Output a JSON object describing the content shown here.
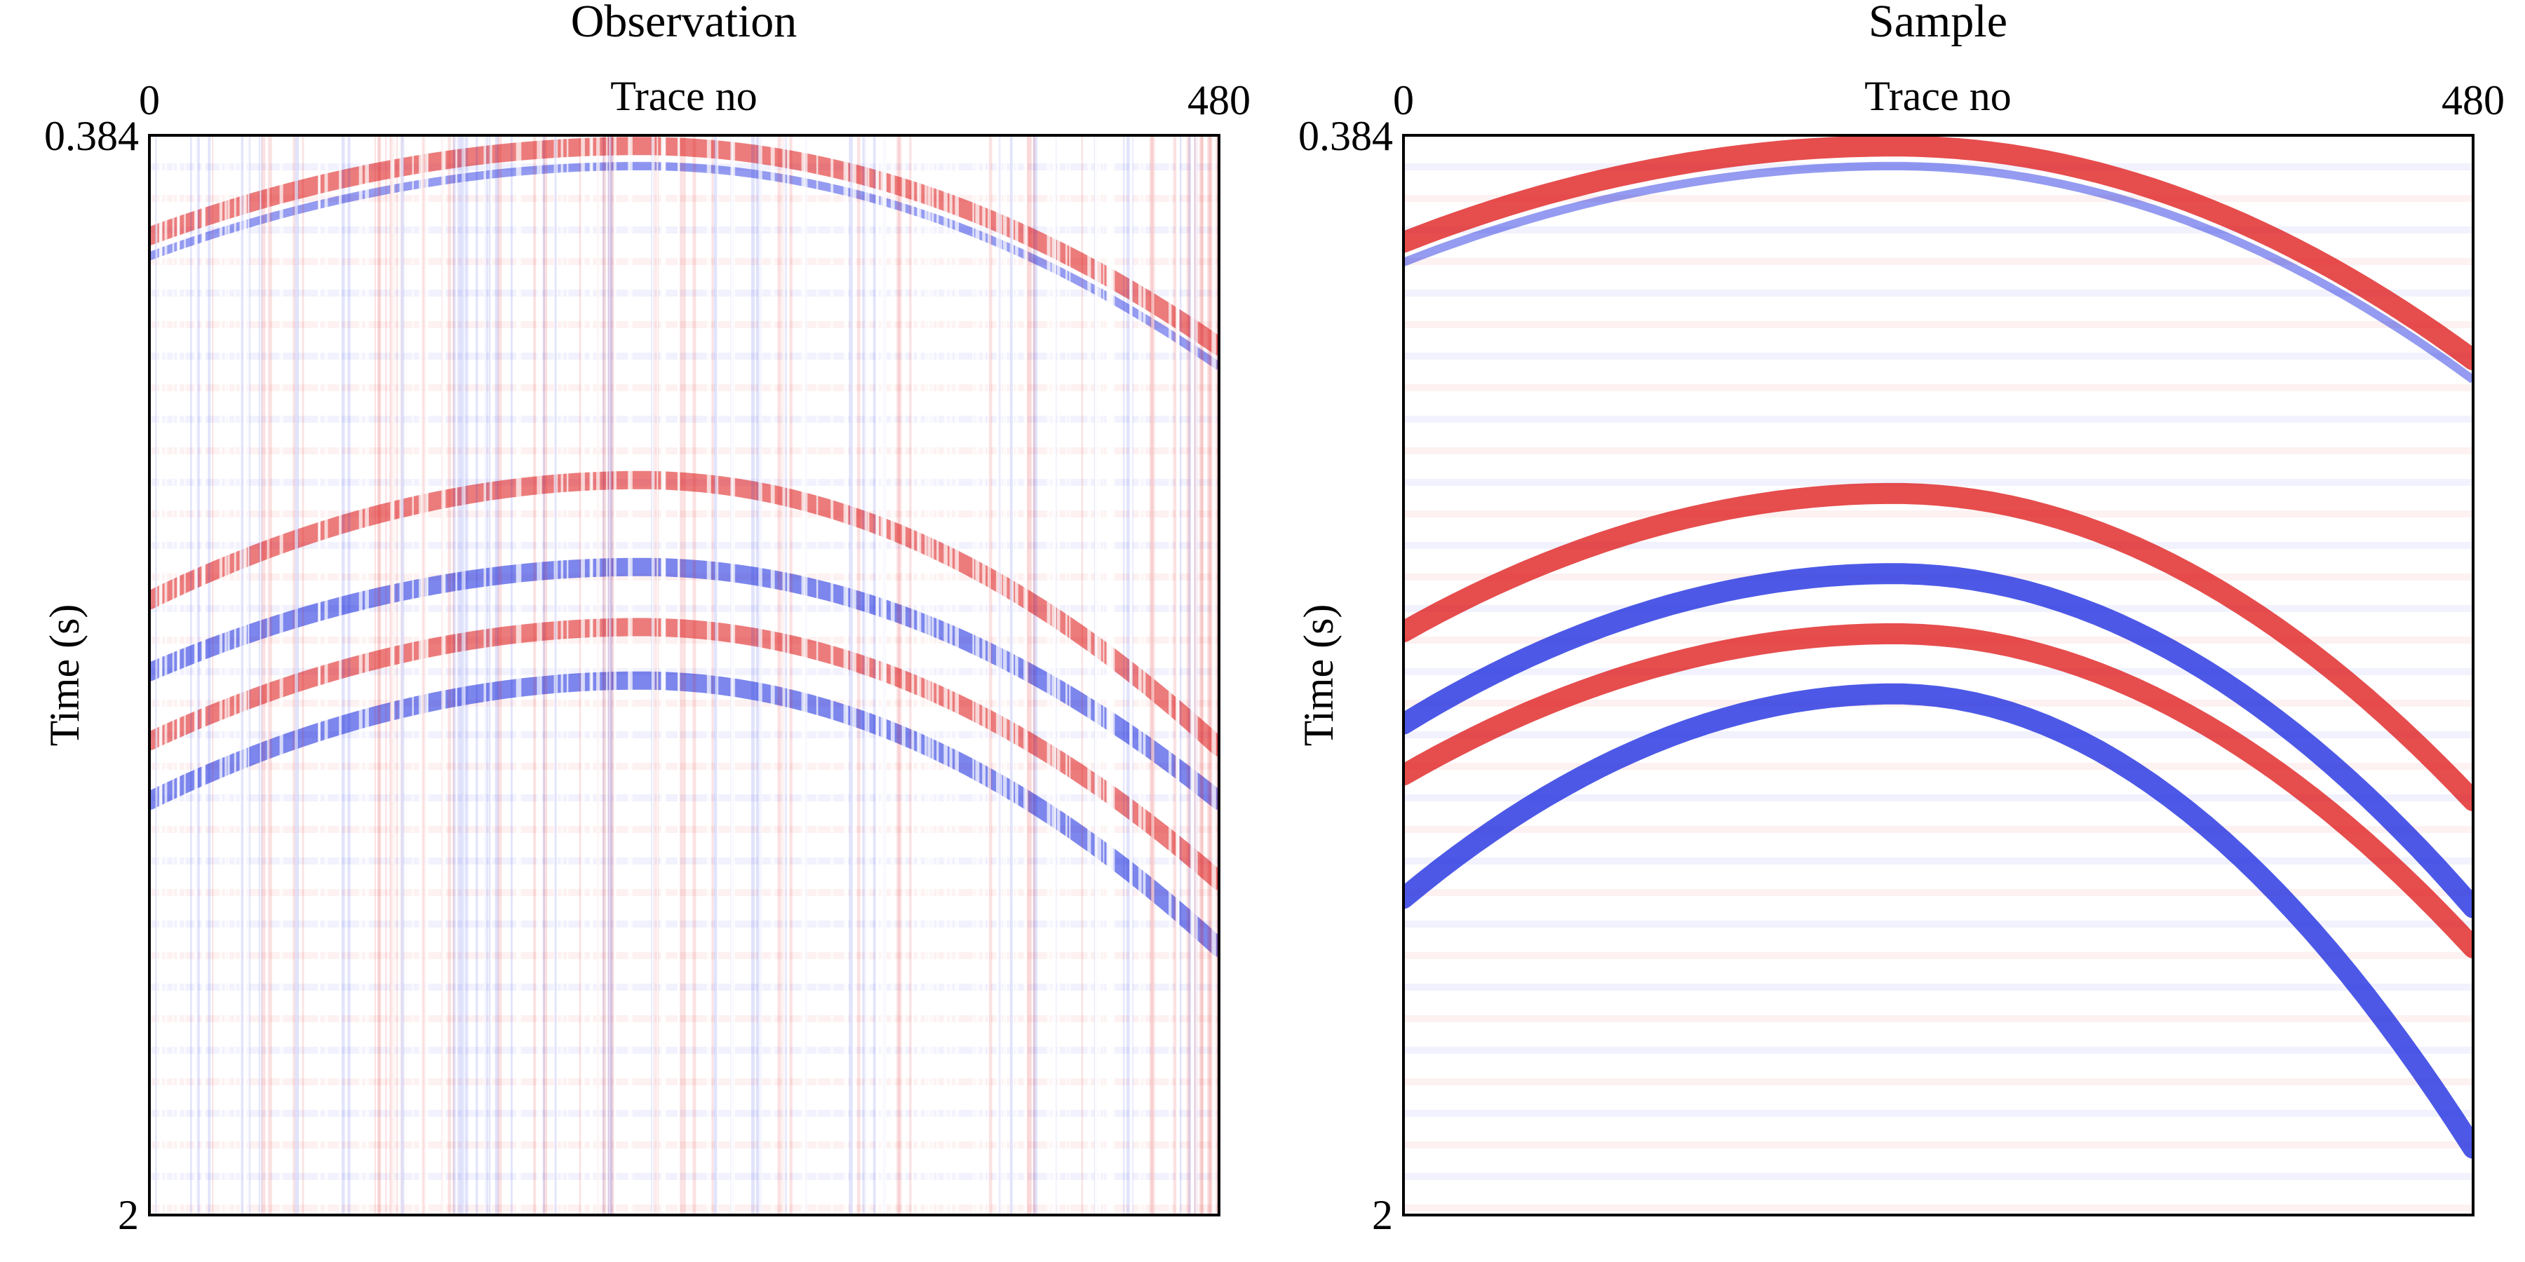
{
  "chart_data": [
    {
      "type": "heatmap",
      "title": "Observation",
      "xlabel": "Trace no",
      "ylabel": "Time (s)",
      "x_ticks": [
        "0",
        "480"
      ],
      "y_ticks": [
        "0.384",
        "2"
      ],
      "xlim": [
        0,
        480
      ],
      "ylim": [
        0.384,
        2
      ],
      "y_inverted": true,
      "x_axis_position": "top",
      "colormap": "seismic",
      "colors": {
        "positive": "#dd1111",
        "negative": "#1122dd",
        "zero": "#ffffff"
      },
      "noise": "vertical trace-wise striping, sparse traces",
      "events": [
        {
          "kind": "hyperbola",
          "apex_trace": 220,
          "apex_time": 0.4,
          "end_time": 0.7,
          "polarity": "red/blue"
        },
        {
          "kind": "hyperbola",
          "apex_trace": 220,
          "apex_time": 0.9,
          "end_time": 1.3,
          "polarity": "red"
        },
        {
          "kind": "hyperbola",
          "apex_trace": 220,
          "apex_time": 1.03,
          "end_time": 1.38,
          "polarity": "blue"
        },
        {
          "kind": "hyperbola",
          "apex_trace": 220,
          "apex_time": 1.12,
          "end_time": 1.5,
          "polarity": "red"
        },
        {
          "kind": "hyperbola",
          "apex_trace": 220,
          "apex_time": 1.2,
          "end_time": 1.6,
          "polarity": "blue"
        }
      ]
    },
    {
      "type": "heatmap",
      "title": "Sample",
      "xlabel": "Trace no",
      "ylabel": "Time (s)",
      "x_ticks": [
        "0",
        "480"
      ],
      "y_ticks": [
        "0.384",
        "2"
      ],
      "xlim": [
        0,
        480
      ],
      "ylim": [
        0.384,
        2
      ],
      "y_inverted": true,
      "x_axis_position": "top",
      "colormap": "seismic",
      "colors": {
        "positive": "#dd1111",
        "negative": "#1122dd",
        "zero": "#ffffff"
      },
      "noise": "smooth continuous reflections",
      "events": [
        {
          "kind": "hyperbola",
          "apex_trace": 220,
          "apex_time": 0.4,
          "end_time": 0.72,
          "polarity": "red/blue"
        },
        {
          "kind": "hyperbola",
          "apex_trace": 220,
          "apex_time": 0.92,
          "end_time": 1.38,
          "polarity": "red"
        },
        {
          "kind": "hyperbola",
          "apex_trace": 220,
          "apex_time": 1.04,
          "end_time": 1.54,
          "polarity": "blue"
        },
        {
          "kind": "hyperbola",
          "apex_trace": 220,
          "apex_time": 1.13,
          "end_time": 1.6,
          "polarity": "red"
        },
        {
          "kind": "hyperbola",
          "apex_trace": 220,
          "apex_time": 1.22,
          "end_time": 1.9,
          "polarity": "blue"
        }
      ]
    }
  ]
}
